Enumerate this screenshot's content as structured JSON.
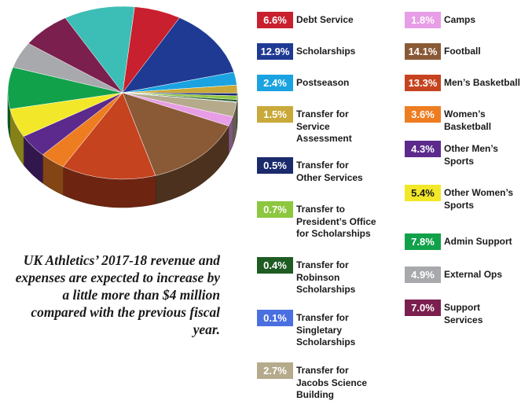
{
  "caption": "UK Athletics’ 2017-18 revenue and expenses are expected to increase by a little more than $4 million compared with the previous fiscal year.",
  "chart_data": {
    "type": "pie",
    "title": "",
    "slices": [
      {
        "label": "Debt Service",
        "value": 6.6,
        "value_label": "6.6%",
        "color": "#c8202f"
      },
      {
        "label": "Scholarships",
        "value": 12.9,
        "value_label": "12.9%",
        "color": "#1f3a93"
      },
      {
        "label": "Postseason",
        "value": 2.4,
        "value_label": "2.4%",
        "color": "#1aa3e0"
      },
      {
        "label": "Transfer for Service Assessment",
        "value": 1.5,
        "value_label": "1.5%",
        "color": "#c9a93a"
      },
      {
        "label": "Transfer for Other Services",
        "value": 0.5,
        "value_label": "0.5%",
        "color": "#1b2a6b"
      },
      {
        "label": "Transfer to President’s Office for Scholarships",
        "value": 0.7,
        "value_label": "0.7%",
        "color": "#8dc63f"
      },
      {
        "label": "Transfer for Robinson Scholarships",
        "value": 0.4,
        "value_label": "0.4%",
        "color": "#1e5c24"
      },
      {
        "label": "Transfer for Singletary Scholarships",
        "value": 0.1,
        "value_label": "0.1%",
        "color": "#4a6fe0"
      },
      {
        "label": "Transfer for Jacobs Science Building",
        "value": 2.7,
        "value_label": "2.7%",
        "color": "#b5aa8c"
      },
      {
        "label": "Camps",
        "value": 1.8,
        "value_label": "1.8%",
        "color": "#e79ee6"
      },
      {
        "label": "Football",
        "value": 14.1,
        "value_label": "14.1%",
        "color": "#8a5a36"
      },
      {
        "label": "Men’s Basketball",
        "value": 13.3,
        "value_label": "13.3%",
        "color": "#c6431f"
      },
      {
        "label": "Women’s Basketball",
        "value": 3.6,
        "value_label": "3.6%",
        "color": "#ee7d22"
      },
      {
        "label": "Other Men’s Sports",
        "value": 4.3,
        "value_label": "4.3%",
        "color": "#5b2a8c"
      },
      {
        "label": "Other Women’s Sports",
        "value": 5.4,
        "value_label": "5.4%",
        "color": "#f2e829"
      },
      {
        "label": "Admin Support",
        "value": 7.8,
        "value_label": "7.8%",
        "color": "#12a14b"
      },
      {
        "label": "External Ops",
        "value": 4.9,
        "value_label": "4.9%",
        "color": "#a7a9ac"
      },
      {
        "label": "Support Services",
        "value": 7.0,
        "value_label": "7.0%",
        "color": "#7b1f4e"
      },
      {
        "label": "",
        "value": 10.0,
        "color": "#3cbdb5"
      }
    ]
  },
  "legend": [
    {
      "pct": "6.6%",
      "label": "Debt Service",
      "color": "#c8202f"
    },
    {
      "pct": "12.9%",
      "label": "Scholarships",
      "color": "#1f3a93"
    },
    {
      "pct": "2.4%",
      "label": "Postseason",
      "color": "#1aa3e0"
    },
    {
      "pct": "1.5%",
      "label": "Transfer for\nService\nAssessment",
      "color": "#c9a93a"
    },
    {
      "pct": "0.5%",
      "label": "Transfer for\nOther Services",
      "color": "#1b2a6b"
    },
    {
      "pct": "0.7%",
      "label": "Transfer to\nPresident’s Office\nfor Scholarships",
      "color": "#8dc63f"
    },
    {
      "pct": "0.4%",
      "label": "Transfer for\nRobinson\nScholarships",
      "color": "#1e5c24"
    },
    {
      "pct": "0.1%",
      "label": "Transfer for\nSingletary\nScholarships",
      "color": "#4a6fe0"
    },
    {
      "pct": "2.7%",
      "label": "Transfer for\nJacobs Science\nBuilding",
      "color": "#b5aa8c"
    },
    {
      "pct": "1.8%",
      "label": "Camps",
      "color": "#e79ee6"
    },
    {
      "pct": "14.1%",
      "label": "Football",
      "color": "#8a5a36"
    },
    {
      "pct": "13.3%",
      "label": "Men’s Basketball",
      "color": "#c6431f"
    },
    {
      "pct": "3.6%",
      "label": "Women’s\nBasketball",
      "color": "#ee7d22"
    },
    {
      "pct": "4.3%",
      "label": "Other Men’s\nSports",
      "color": "#5b2a8c"
    },
    {
      "pct": "5.4%",
      "label": "Other Women’s\nSports",
      "color": "#f2e829",
      "text_color": "#1a1a1a"
    },
    {
      "pct": "7.8%",
      "label": "Admin Support",
      "color": "#12a14b"
    },
    {
      "pct": "4.9%",
      "label": "External Ops",
      "color": "#a7a9ac"
    },
    {
      "pct": "7.0%",
      "label": "Support\nServices",
      "color": "#7b1f4e"
    }
  ]
}
